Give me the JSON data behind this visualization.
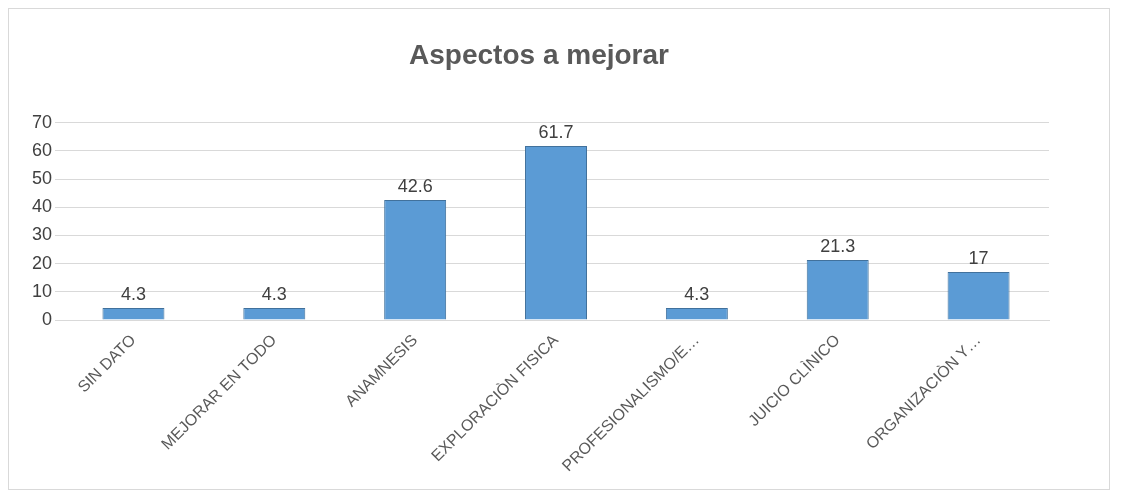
{
  "chart_data": {
    "type": "bar",
    "title": "Aspectos a mejorar",
    "categories": [
      "SIN DATO",
      "MEJORAR EN TODO",
      "ANAMNESIS",
      "EXPLORACIÒN FISICA",
      "PROFESIONALISMO/E…",
      "JUICIO CLÌNICO",
      "ORGANIZACIÒN Y…"
    ],
    "values": [
      4.3,
      4.3,
      42.6,
      61.7,
      4.3,
      21.3,
      17
    ],
    "color": "#5b9bd5",
    "ylim": [
      0,
      70
    ],
    "yticks": [
      0,
      10,
      20,
      30,
      40,
      50,
      60,
      70
    ],
    "grid": "y",
    "data_labels": true
  }
}
